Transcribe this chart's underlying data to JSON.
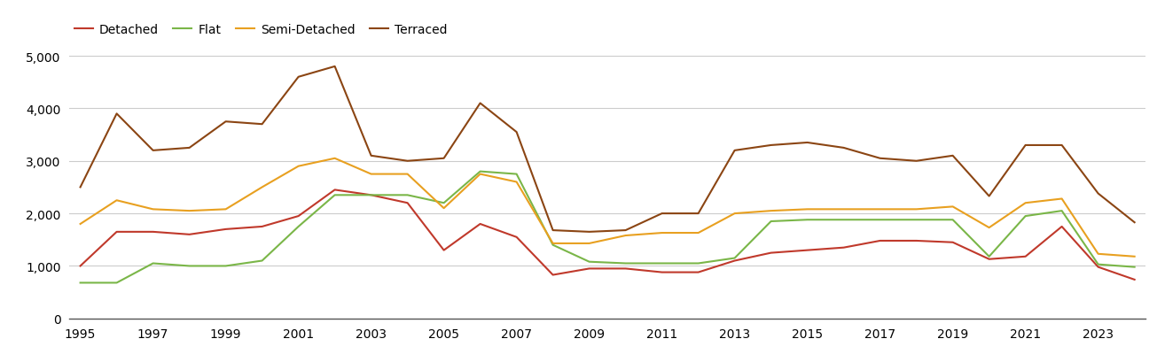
{
  "years": [
    1995,
    1996,
    1997,
    1998,
    1999,
    2000,
    2001,
    2002,
    2003,
    2004,
    2005,
    2006,
    2007,
    2008,
    2009,
    2010,
    2011,
    2012,
    2013,
    2014,
    2015,
    2016,
    2017,
    2018,
    2019,
    2020,
    2021,
    2022,
    2023,
    2024
  ],
  "detached": [
    1000,
    1650,
    1650,
    1600,
    1700,
    1750,
    1950,
    2450,
    2350,
    2200,
    1300,
    1800,
    1550,
    830,
    950,
    950,
    880,
    880,
    1100,
    1250,
    1300,
    1350,
    1480,
    1480,
    1450,
    1130,
    1180,
    1750,
    980,
    740
  ],
  "flat": [
    680,
    680,
    1050,
    1000,
    1000,
    1100,
    1750,
    2350,
    2350,
    2350,
    2200,
    2800,
    2750,
    1400,
    1080,
    1050,
    1050,
    1050,
    1150,
    1850,
    1880,
    1880,
    1880,
    1880,
    1880,
    1180,
    1950,
    2050,
    1030,
    980
  ],
  "semi_detached": [
    1800,
    2250,
    2080,
    2050,
    2080,
    2500,
    2900,
    3050,
    2750,
    2750,
    2100,
    2750,
    2600,
    1430,
    1430,
    1580,
    1630,
    1630,
    2000,
    2050,
    2080,
    2080,
    2080,
    2080,
    2130,
    1730,
    2200,
    2280,
    1230,
    1180
  ],
  "terraced": [
    2500,
    3900,
    3200,
    3250,
    3750,
    3700,
    4600,
    4800,
    3100,
    3000,
    3050,
    4100,
    3550,
    1680,
    1650,
    1680,
    2000,
    2000,
    3200,
    3300,
    3350,
    3250,
    3050,
    3000,
    3100,
    2330,
    3300,
    3300,
    2380,
    1830
  ],
  "colors": {
    "detached": "#c0392b",
    "flat": "#7ab648",
    "semi_detached": "#e8a020",
    "terraced": "#8B4513"
  },
  "ylim": [
    0,
    5250
  ],
  "yticks": [
    0,
    1000,
    2000,
    3000,
    4000,
    5000
  ],
  "xtick_years": [
    1995,
    1997,
    1999,
    2001,
    2003,
    2005,
    2007,
    2009,
    2011,
    2013,
    2015,
    2017,
    2019,
    2021,
    2023
  ],
  "background_color": "#ffffff",
  "grid_color": "#cccccc",
  "linewidth": 1.5,
  "fig_width": 13.05,
  "fig_height": 4.1
}
